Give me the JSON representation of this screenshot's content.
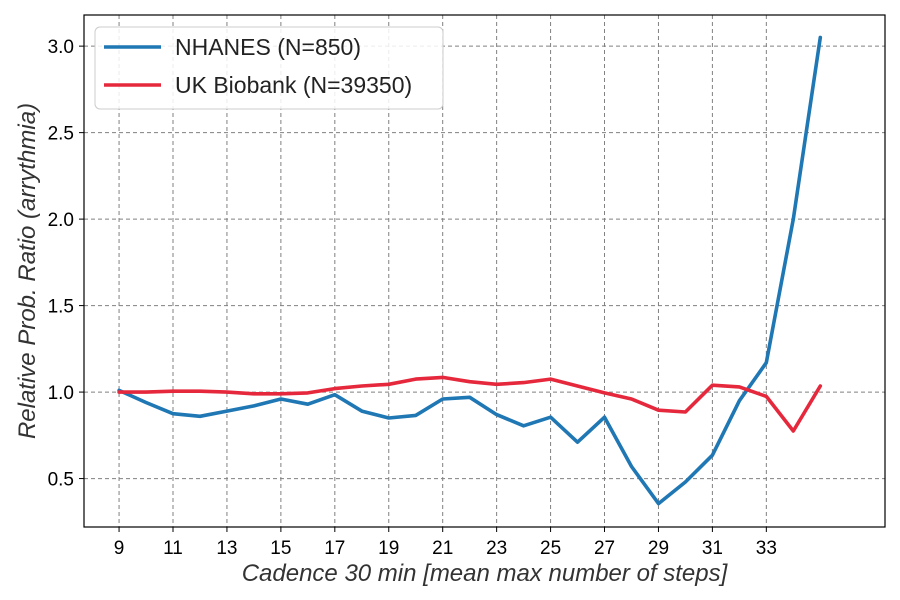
{
  "chart_data": {
    "type": "line",
    "xlabel": "Cadence 30 min [mean max number of steps]",
    "ylabel": "Relative Prob. Ratio (arrythmia)",
    "xlim": [
      7.7,
      37.4
    ],
    "ylim": [
      0.22,
      3.18
    ],
    "x_ticks": [
      9,
      11,
      13,
      15,
      17,
      19,
      21,
      23,
      25,
      27,
      29,
      31,
      33
    ],
    "y_ticks": [
      0.5,
      1.0,
      1.5,
      2.0,
      2.5,
      3.0
    ],
    "y_tick_labels": [
      "0.5",
      "1.0",
      "1.5",
      "2.0",
      "2.5",
      "3.0"
    ],
    "grid": true,
    "legend_position": "top-left",
    "x": [
      9,
      10,
      11,
      12,
      13,
      14,
      15,
      16,
      17,
      18,
      19,
      20,
      21,
      22,
      23,
      24,
      25,
      26,
      27,
      28,
      29,
      30,
      31,
      32,
      33,
      34,
      35
    ],
    "series": [
      {
        "name": "NHANES (N=850)",
        "color": "#1f77b4",
        "values": [
          1.01,
          0.94,
          0.875,
          0.86,
          0.89,
          0.92,
          0.96,
          0.93,
          0.985,
          0.89,
          0.85,
          0.865,
          0.96,
          0.97,
          0.87,
          0.805,
          0.855,
          0.71,
          0.855,
          0.57,
          0.355,
          0.48,
          0.635,
          0.95,
          1.17,
          2.0,
          3.05
        ]
      },
      {
        "name": "UK Biobank (N=39350)",
        "color": "#e6283c",
        "values": [
          1.0,
          1.0,
          1.005,
          1.005,
          1.0,
          0.99,
          0.99,
          0.995,
          1.02,
          1.035,
          1.045,
          1.075,
          1.085,
          1.06,
          1.045,
          1.055,
          1.075,
          1.035,
          0.995,
          0.96,
          0.895,
          0.885,
          1.04,
          1.03,
          0.975,
          0.775,
          1.035
        ]
      }
    ]
  }
}
